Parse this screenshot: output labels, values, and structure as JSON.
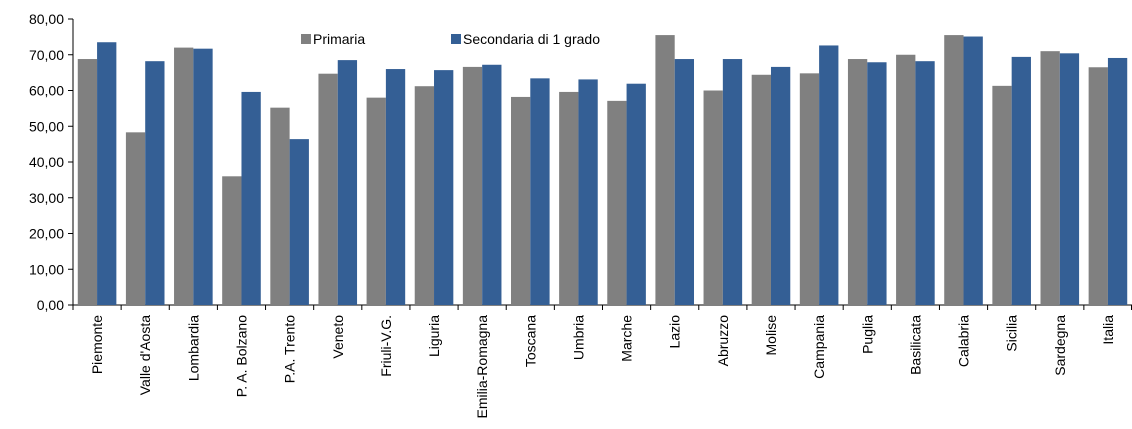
{
  "chart_data": {
    "type": "bar",
    "categories": [
      "Piemonte",
      "Valle d'Aosta",
      "Lombardia",
      "P. A. Bolzano",
      "P.A. Trento",
      "Veneto",
      "Friuli-V.G.",
      "Liguria",
      "Emilia-Romagna",
      "Toscana",
      "Umbria",
      "Marche",
      "Lazio",
      "Abruzzo",
      "Molise",
      "Campania",
      "Puglia",
      "Basilicata",
      "Calabria",
      "Sicilia",
      "Sardegna",
      "Italia"
    ],
    "series": [
      {
        "name": "Primaria",
        "color": "#808080",
        "values": [
          68.8,
          48.3,
          72.0,
          36.0,
          55.2,
          64.7,
          58.0,
          61.2,
          66.6,
          58.2,
          59.6,
          57.1,
          75.5,
          60.0,
          64.4,
          64.8,
          68.8,
          70.0,
          75.5,
          61.3,
          71.0,
          66.5
        ]
      },
      {
        "name": "Secondaria di 1 grado",
        "color": "#345f95",
        "values": [
          73.5,
          68.2,
          71.7,
          59.6,
          46.4,
          68.5,
          66.0,
          65.7,
          67.2,
          63.4,
          63.1,
          61.9,
          68.8,
          68.8,
          66.6,
          72.6,
          67.9,
          68.2,
          75.1,
          69.4,
          70.4,
          69.1
        ]
      }
    ],
    "yticks": [
      "0,00",
      "10,00",
      "20,00",
      "30,00",
      "40,00",
      "50,00",
      "60,00",
      "70,00",
      "80,00"
    ],
    "ylim": [
      0,
      80
    ],
    "title": "",
    "xlabel": "",
    "ylabel": "",
    "legend_position": "top-center",
    "grid": false
  }
}
